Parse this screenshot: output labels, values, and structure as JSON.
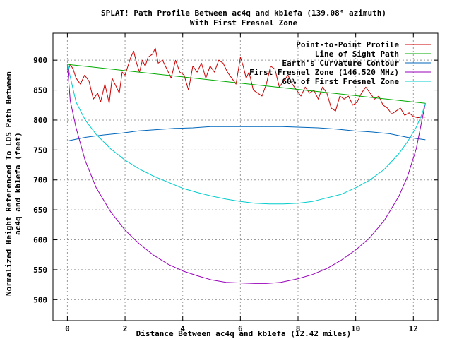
{
  "chart_data": {
    "type": "line",
    "title": "SPLAT! Path Profile Between ac4q and kb1efa (139.08° azimuth)",
    "subtitle": "With First Fresnel Zone",
    "xlabel": "Distance Between ac4q and kb1efa (12.42 miles)",
    "ylabel_line1": "Normalized Height Referenced To LOS Path Between",
    "ylabel_line2": "ac4q and kb1efa (feet)",
    "xlim": [
      -0.5,
      12.85
    ],
    "ylim": [
      465,
      945
    ],
    "xticks": [
      0,
      2,
      4,
      6,
      8,
      10,
      12
    ],
    "yticks": [
      500,
      550,
      600,
      650,
      700,
      750,
      800,
      850,
      900
    ],
    "grid": true,
    "legend_position": "top-right",
    "series": [
      {
        "name": "Point-to-Point Profile",
        "color": "#cc0000",
        "x": [
          0.0,
          0.1,
          0.2,
          0.3,
          0.45,
          0.6,
          0.75,
          0.9,
          1.05,
          1.15,
          1.3,
          1.45,
          1.55,
          1.7,
          1.8,
          1.9,
          2.0,
          2.1,
          2.2,
          2.3,
          2.4,
          2.5,
          2.6,
          2.7,
          2.8,
          2.95,
          3.05,
          3.15,
          3.3,
          3.45,
          3.6,
          3.75,
          3.9,
          4.05,
          4.2,
          4.35,
          4.5,
          4.65,
          4.8,
          4.95,
          5.1,
          5.25,
          5.4,
          5.55,
          5.7,
          5.85,
          6.0,
          6.1,
          6.2,
          6.3,
          6.45,
          6.6,
          6.75,
          6.9,
          7.05,
          7.2,
          7.35,
          7.5,
          7.65,
          7.8,
          7.95,
          8.1,
          8.25,
          8.4,
          8.55,
          8.7,
          8.85,
          9.0,
          9.15,
          9.3,
          9.45,
          9.6,
          9.75,
          9.9,
          10.05,
          10.2,
          10.35,
          10.5,
          10.65,
          10.8,
          10.95,
          11.1,
          11.25,
          11.4,
          11.55,
          11.7,
          11.85,
          12.0,
          12.15,
          12.3,
          12.42
        ],
        "y": [
          880,
          893,
          885,
          870,
          860,
          875,
          865,
          835,
          845,
          830,
          860,
          828,
          870,
          855,
          845,
          880,
          875,
          890,
          905,
          915,
          895,
          880,
          900,
          890,
          905,
          910,
          920,
          895,
          900,
          885,
          870,
          900,
          880,
          875,
          850,
          890,
          880,
          895,
          870,
          890,
          880,
          900,
          895,
          880,
          870,
          860,
          905,
          890,
          870,
          880,
          850,
          845,
          840,
          860,
          890,
          885,
          855,
          865,
          875,
          860,
          850,
          840,
          855,
          845,
          850,
          835,
          855,
          845,
          820,
          815,
          840,
          835,
          840,
          825,
          830,
          845,
          855,
          845,
          835,
          840,
          825,
          820,
          810,
          815,
          820,
          808,
          812,
          806,
          804,
          805,
          805
        ]
      },
      {
        "name": "Line of Sight Path",
        "color": "#00aa00",
        "x": [
          0.0,
          12.42
        ],
        "y": [
          893,
          828
        ]
      },
      {
        "name": "Earth's Curvature Contour",
        "color": "#0066bb",
        "x": [
          0.0,
          0.62,
          1.24,
          1.86,
          2.48,
          3.11,
          3.73,
          4.35,
          4.97,
          5.59,
          6.21,
          6.83,
          7.45,
          8.07,
          8.69,
          9.32,
          9.94,
          10.56,
          11.18,
          11.8,
          12.42
        ],
        "y": [
          765,
          771,
          775,
          778,
          782,
          784,
          786,
          787,
          789,
          789,
          789,
          789,
          789,
          788,
          787,
          785,
          782,
          780,
          777,
          771,
          767
        ]
      },
      {
        "name": "First Fresnel Zone (146.520 MHz)",
        "color": "#9900bb",
        "x": [
          0.0,
          0.1,
          0.3,
          0.62,
          1.0,
          1.5,
          2.0,
          2.5,
          3.0,
          3.5,
          4.0,
          4.5,
          5.0,
          5.5,
          6.0,
          6.5,
          6.9,
          7.4,
          8.0,
          8.5,
          9.0,
          9.5,
          10.0,
          10.5,
          11.0,
          11.5,
          11.8,
          12.1,
          12.3,
          12.42
        ],
        "y": [
          893,
          832,
          787,
          732,
          687,
          647,
          616,
          593,
          574,
          559,
          548,
          540,
          533,
          529,
          528,
          527,
          527,
          529,
          535,
          542,
          552,
          566,
          583,
          604,
          633,
          673,
          706,
          752,
          800,
          828
        ]
      },
      {
        "name": "60% of First Fresnel Zone",
        "color": "#00cccc",
        "x": [
          0.0,
          0.3,
          0.62,
          1.0,
          1.5,
          2.0,
          2.5,
          3.0,
          3.5,
          4.0,
          4.5,
          5.0,
          5.5,
          6.0,
          6.5,
          7.0,
          7.5,
          8.0,
          8.5,
          9.0,
          9.5,
          10.0,
          10.5,
          11.0,
          11.5,
          11.8,
          12.1,
          12.3,
          12.42
        ],
        "y": [
          893,
          830,
          800,
          776,
          752,
          733,
          718,
          706,
          696,
          686,
          679,
          673,
          668,
          664,
          661,
          660,
          660,
          661,
          664,
          670,
          676,
          687,
          700,
          718,
          744,
          764,
          788,
          810,
          828
        ]
      }
    ]
  }
}
